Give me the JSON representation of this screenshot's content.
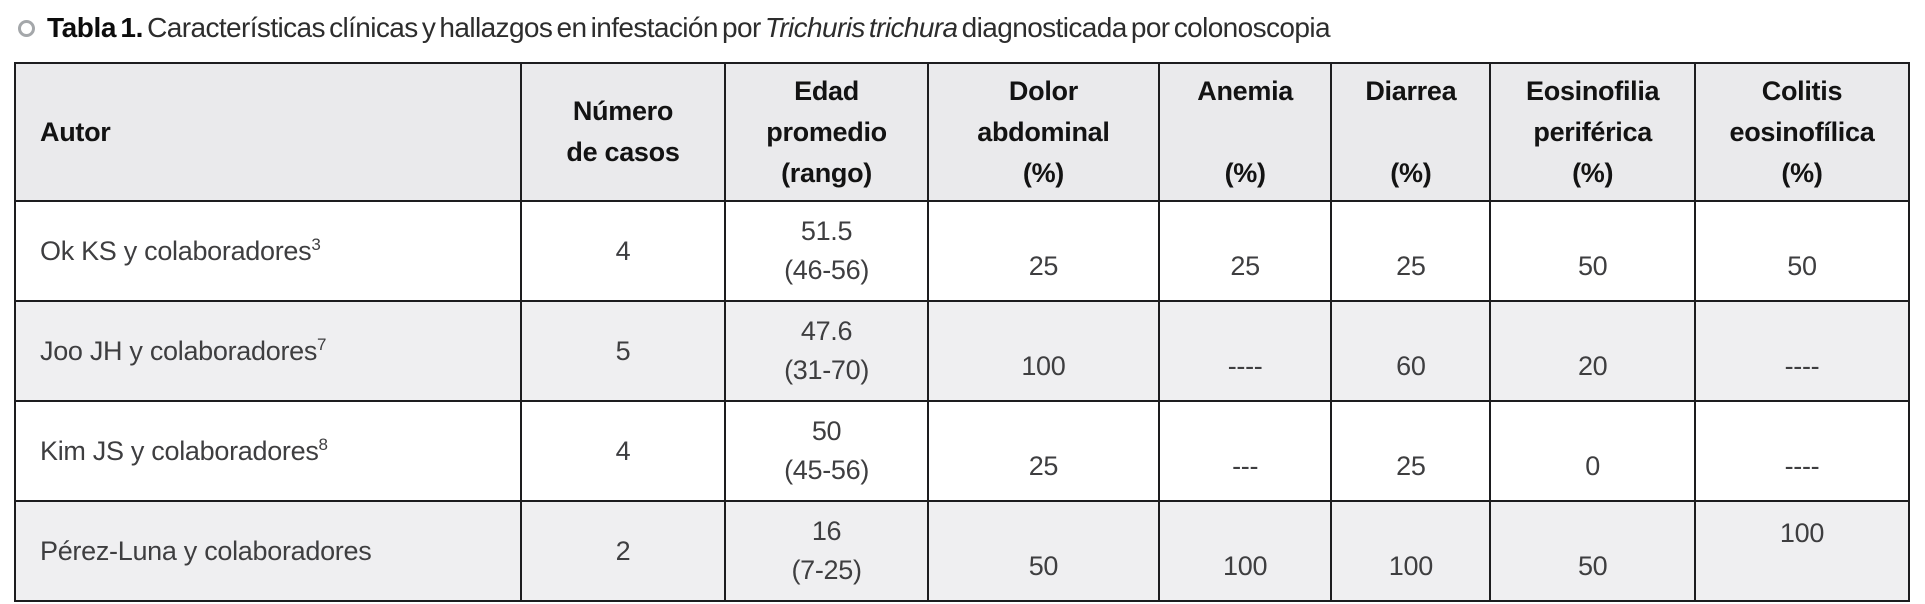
{
  "caption": {
    "label": "Tabla 1.",
    "before_italic": "Características clínicas y hallazgos en infestación por ",
    "italic": "Trichuris trichura",
    "after_italic": " diagnosticada por colonoscopia"
  },
  "table": {
    "columns": [
      {
        "id": "autor",
        "lines": [
          "Autor"
        ]
      },
      {
        "id": "numero-de-casos",
        "lines": [
          "Número",
          "de casos"
        ]
      },
      {
        "id": "edad-promedio-rango",
        "lines": [
          "Edad",
          "promedio",
          "(rango)"
        ]
      },
      {
        "id": "dolor-abdominal-pct",
        "lines": [
          "Dolor",
          "abdominal",
          "(%)"
        ]
      },
      {
        "id": "anemia-pct",
        "lines": [
          "Anemia",
          "",
          "(%)"
        ]
      },
      {
        "id": "diarrea-pct",
        "lines": [
          "Diarrea",
          "",
          "(%)"
        ]
      },
      {
        "id": "eosinofilia-periferica-pct",
        "lines": [
          "Eosinofilia",
          "periférica",
          "(%)"
        ]
      },
      {
        "id": "colitis-eosinofilica-pct",
        "lines": [
          "Colitis",
          "eosinofílica",
          "(%)"
        ]
      }
    ],
    "rows": [
      {
        "author": "Ok KS y colaboradores",
        "ref": "3",
        "casos": "4",
        "edad": [
          "51.5",
          "(46-56)"
        ],
        "dolor": "25",
        "anemia": "25",
        "diarrea": "25",
        "eosinofilia": "50",
        "colitis": "50"
      },
      {
        "author": "Joo JH y colaboradores",
        "ref": "7",
        "casos": "5",
        "edad": [
          "47.6",
          "(31-70)"
        ],
        "dolor": "100",
        "anemia": "----",
        "diarrea": "60",
        "eosinofilia": "20",
        "colitis": "----"
      },
      {
        "author": "Kim JS y colaboradores",
        "ref": "8",
        "casos": "4",
        "edad": [
          "50",
          "(45-56)"
        ],
        "dolor": "25",
        "anemia": "---",
        "diarrea": "25",
        "eosinofilia": "0",
        "colitis": "----"
      },
      {
        "author": "Pérez-Luna y colaboradores",
        "ref": "",
        "casos": "2",
        "edad": [
          "16",
          "(7-25)"
        ],
        "dolor": "50",
        "anemia": "100",
        "diarrea": "100",
        "eosinofilia": "50",
        "colitis": "100"
      }
    ],
    "column_widths_pct": [
      26.7,
      10.8,
      10.7,
      12.2,
      9.1,
      8.4,
      10.8,
      11.3
    ]
  }
}
